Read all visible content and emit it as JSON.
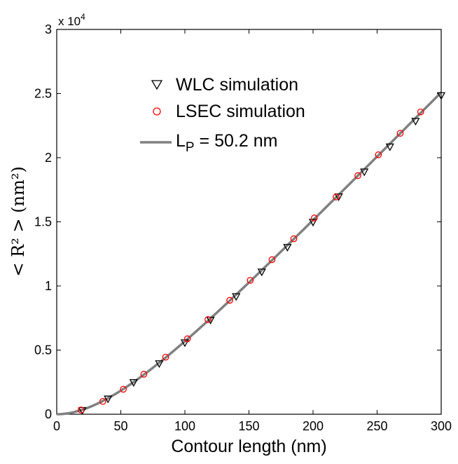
{
  "chart_data": {
    "type": "scatter",
    "xlabel": "Contour length (nm)",
    "ylabel": "< R² > (nm²)",
    "x_ticks": [
      "0",
      "50",
      "100",
      "150",
      "200",
      "250",
      "300"
    ],
    "y_ticks": [
      "0",
      "0.5",
      "1",
      "1.5",
      "2",
      "2.5",
      "3"
    ],
    "y_exponent_label": "x 10",
    "y_exponent_power": "4",
    "xlim": [
      0,
      300
    ],
    "ylim": [
      0,
      30000
    ],
    "grid": false,
    "legend_position": "top-left",
    "series": [
      {
        "name": "WLC simulation",
        "marker": "triangle-down",
        "color": "#000000",
        "x": [
          20,
          40,
          60,
          80,
          100,
          120,
          140,
          160,
          180,
          200,
          220,
          240,
          260,
          280,
          300
        ],
        "y": [
          300,
          1200,
          2480,
          3950,
          5580,
          7350,
          9180,
          11100,
          13020,
          14980,
          16960,
          18900,
          20850,
          22850,
          24850
        ]
      },
      {
        "name": "LSEC simulation",
        "marker": "circle",
        "color": "#ff0000",
        "x": [
          19,
          36,
          52,
          68,
          85,
          102,
          118,
          135,
          151,
          168,
          185,
          201,
          218,
          235,
          251,
          268,
          284
        ],
        "y": [
          330,
          1000,
          1950,
          3120,
          4450,
          5880,
          7380,
          8880,
          10440,
          12050,
          13680,
          15300,
          16940,
          18600,
          20230,
          21900,
          23570
        ]
      },
      {
        "name": "L",
        "name_subscript": "P",
        "name_suffix": " = 50.2 nm",
        "marker": "line",
        "color": "#808080",
        "persistence_length_nm": 50.2
      }
    ]
  }
}
